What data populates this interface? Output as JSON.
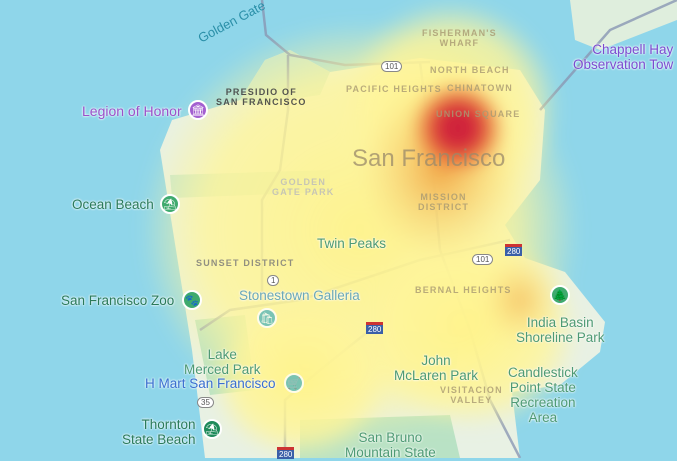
{
  "map": {
    "colors": {
      "water": "#8fd6ea",
      "land": "#e8f1e4",
      "park": "#b9e2c5",
      "road": "#8a97b4",
      "heat_low": "#fff59a",
      "heat_mid": "#f2a340",
      "heat_high": "#c8183c"
    },
    "heatmap_peak_area": "Union Square",
    "water_labels": {
      "golden_gate": "Golden Gate"
    },
    "city_label": "San Francisco",
    "districts": {
      "presidio": "PRESIDIO OF\nSAN FRANCISCO",
      "fishermans_wharf": "FISHERMAN'S\nWHARF",
      "north_beach": "NORTH BEACH",
      "pacific_heights": "PACIFIC HEIGHTS",
      "chinatown": "CHINATOWN",
      "union_square": "UNION SQUARE",
      "golden_gate_park": "GOLDEN\nGATE PARK",
      "mission_district": "MISSION\nDISTRICT",
      "sunset_district": "SUNSET DISTRICT",
      "bernal_heights": "BERNAL HEIGHTS",
      "visitacion_valley": "VISITACION\nVALLEY"
    },
    "pois": {
      "legion_of_honor": {
        "label": "Legion of Honor",
        "icon": "museum-icon"
      },
      "ocean_beach": {
        "label": "Ocean Beach",
        "icon": "beach-icon"
      },
      "sf_zoo": {
        "label": "San Francisco Zoo",
        "icon": "paw-icon"
      },
      "stonestown": {
        "label": "Stonestown Galleria",
        "icon": "shopping-bag-icon"
      },
      "h_mart": {
        "label": "H Mart San Francisco",
        "icon": "shopping-cart-icon"
      },
      "thornton": {
        "label": "Thornton\nState Beach",
        "icon": "beach-icon"
      },
      "chappell": {
        "label": "Chappell Hay\nObservation Tow"
      },
      "india_basin": {
        "label": "India Basin\nShoreline Park",
        "icon": "tree-icon"
      }
    },
    "parks": {
      "twin_peaks": "Twin Peaks",
      "lake_merced": "Lake\nMerced Park",
      "mclaren": "John\nMcLaren Park",
      "candlestick": "Candlestick\nPoint State\nRecreation\nArea",
      "san_bruno": "San Bruno\nMountain State"
    },
    "shields": {
      "us101_a": "101",
      "us101_b": "101",
      "ca1": "1",
      "ca35": "35",
      "i280_a": "280",
      "i280_b": "280",
      "i280_c": "280"
    }
  }
}
